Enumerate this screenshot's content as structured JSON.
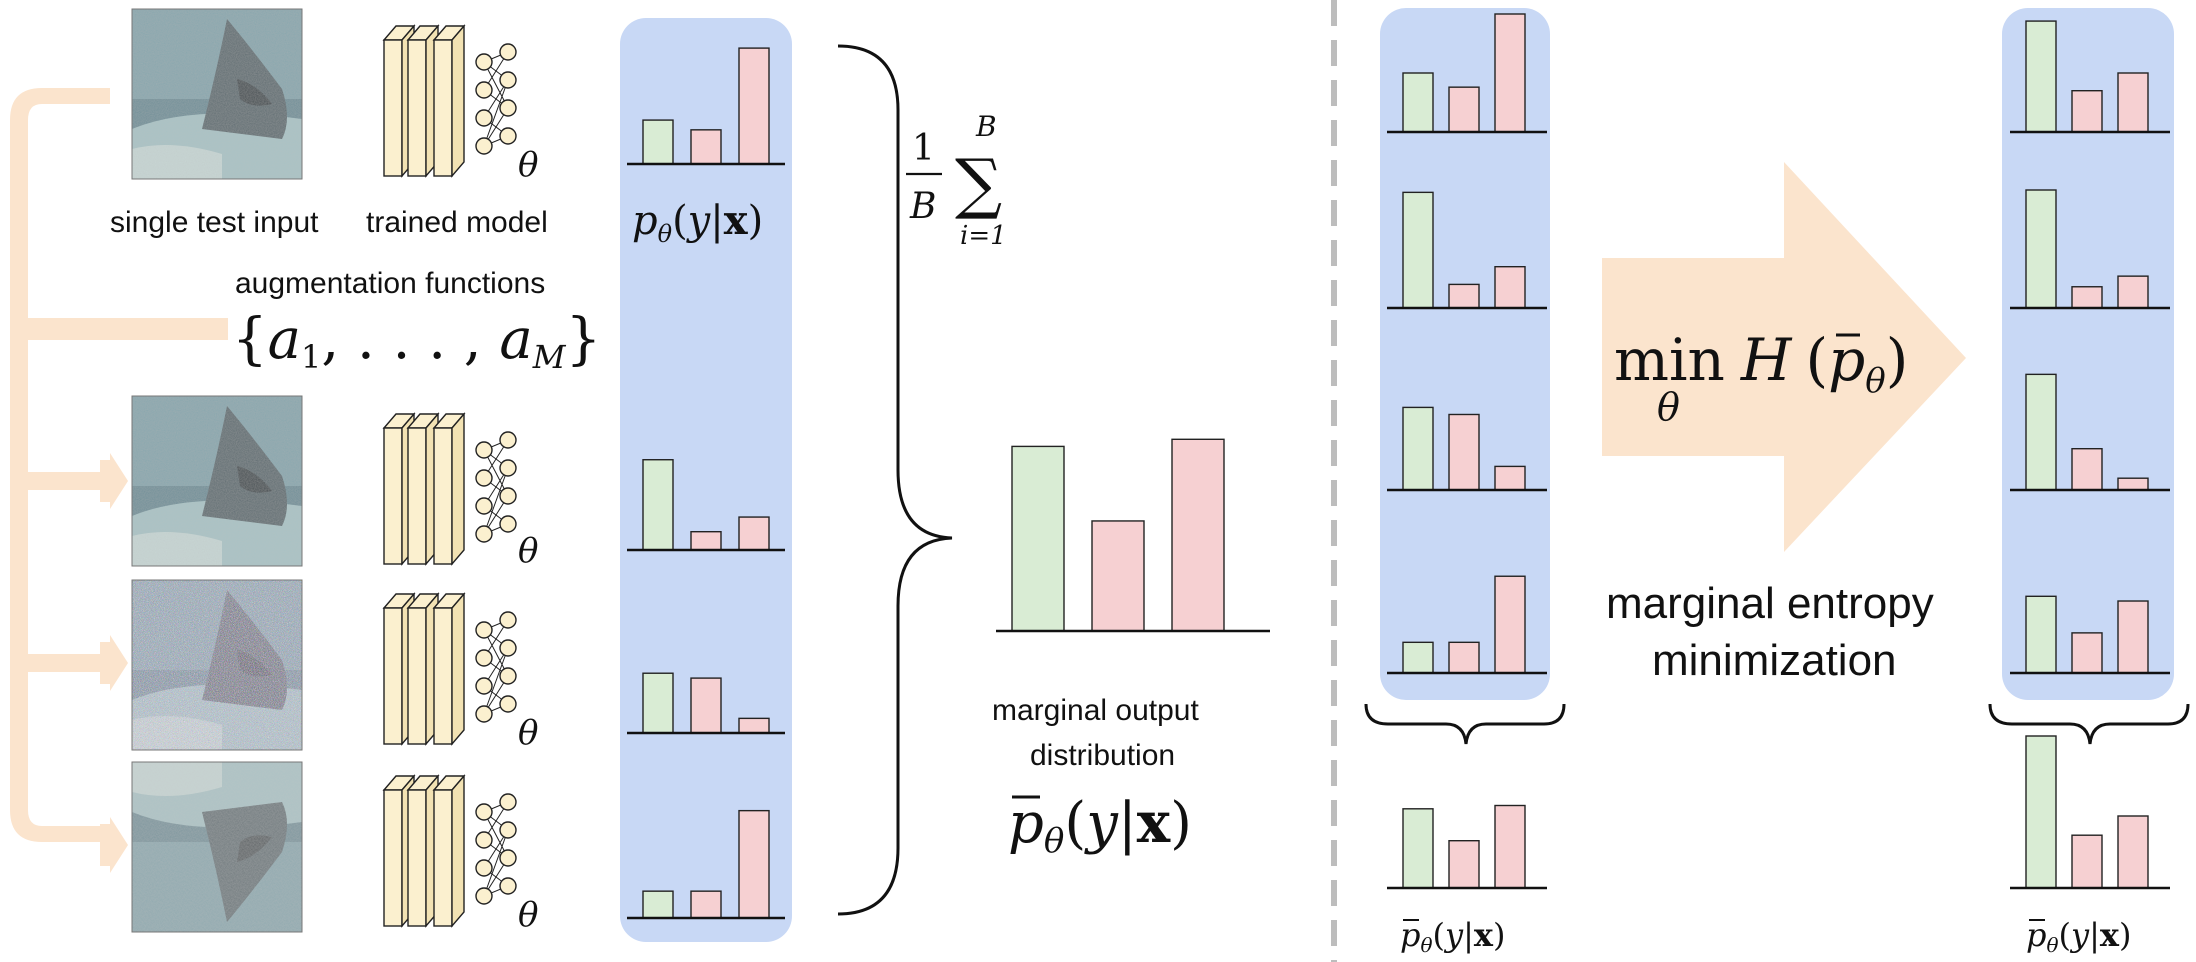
{
  "left_panel": {
    "input_caption": "single test input",
    "model_caption": "trained model",
    "aug_title": "augmentation functions",
    "aug_set": {
      "open": "{",
      "a": "a",
      "one": "1",
      "mid": ", . . . , ",
      "M": "M",
      "close": "}"
    },
    "theta": "θ",
    "p_label": {
      "p": "p",
      "sub": "θ",
      "open": "(",
      "y": "y",
      "bar": "|",
      "x": "x",
      "close": ")"
    },
    "sum_label": {
      "one": "1",
      "B_den": "B",
      "sigma": "∑",
      "B_top": "B",
      "i_eq_1": "i=1"
    },
    "marginal_caption_1": "marginal output",
    "marginal_caption_2": "distribution",
    "marginal_label": {
      "p": "p",
      "bar": "‾",
      "sub": "θ",
      "open": "(",
      "y": "y",
      "pipe": "|",
      "x": "x",
      "close": ")"
    },
    "images": [
      {
        "name": "original",
        "noise": "low"
      },
      {
        "name": "augmented-1",
        "noise": "low"
      },
      {
        "name": "augmented-2",
        "noise": "high"
      },
      {
        "name": "augmented-3",
        "noise": "medium"
      }
    ]
  },
  "right_panel": {
    "min_label": {
      "min": "min",
      "sub": "θ",
      "H": "H",
      "open": "(",
      "p": "p",
      "psub": "θ",
      "close": ")"
    },
    "caption_1": "marginal entropy",
    "caption_2": "minimization",
    "before_label": {
      "p": "p",
      "sub": "θ",
      "open": "(",
      "y": "y",
      "pipe": "|",
      "x": "x",
      "close": ")"
    },
    "after_label": {
      "p": "p",
      "sub": "θ",
      "open": "(",
      "y": "y",
      "pipe": "|",
      "x": "x",
      "close": ")"
    }
  },
  "colors": {
    "green": "#d9ecd4",
    "red": "#f6d0d2",
    "blue_panel": "#c8d8f5",
    "orange": "#fbe4cd",
    "model_block": "#fbf0cf",
    "dashed": "#bdbdbd"
  },
  "chart_data": [
    {
      "name": "left-column",
      "type": "bar",
      "categories": [
        "1",
        "2",
        "3"
      ],
      "groups": [
        {
          "values": [
            0.36,
            0.28,
            0.95
          ]
        },
        {
          "values": [
            0.74,
            0.15,
            0.27
          ]
        },
        {
          "values": [
            0.49,
            0.45,
            0.12
          ]
        },
        {
          "values": [
            0.22,
            0.22,
            0.88
          ]
        }
      ]
    },
    {
      "name": "marginal",
      "type": "bar",
      "categories": [
        "1",
        "2",
        "3"
      ],
      "values": [
        0.52,
        0.31,
        0.54
      ]
    },
    {
      "name": "before-column",
      "type": "bar",
      "categories": [
        "1",
        "2",
        "3"
      ],
      "groups": [
        {
          "values": [
            0.5,
            0.38,
            1.0
          ]
        },
        {
          "values": [
            0.98,
            0.2,
            0.35
          ]
        },
        {
          "values": [
            0.7,
            0.64,
            0.2
          ]
        },
        {
          "values": [
            0.26,
            0.26,
            0.82
          ]
        }
      ],
      "marginal": [
        0.72,
        0.43,
        0.75
      ]
    },
    {
      "name": "after-column",
      "type": "bar",
      "categories": [
        "1",
        "2",
        "3"
      ],
      "groups": [
        {
          "values": [
            0.94,
            0.35,
            0.5
          ]
        },
        {
          "values": [
            1.0,
            0.18,
            0.27
          ]
        },
        {
          "values": [
            0.98,
            0.35,
            0.1
          ]
        },
        {
          "values": [
            0.65,
            0.34,
            0.61
          ]
        }
      ],
      "marginal": [
        0.95,
        0.33,
        0.45
      ]
    }
  ]
}
